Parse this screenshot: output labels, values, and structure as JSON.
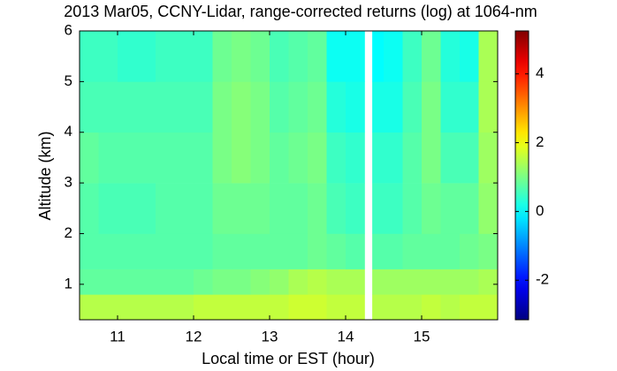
{
  "chart_data": {
    "type": "heatmap",
    "title": "2013 Mar05, CCNY-Lidar, range-corrected returns (log) at 1064-nm",
    "xlabel": "Local time or EST (hour)",
    "ylabel": "Altitude (km)",
    "colormap": "jet",
    "x_edges": [
      10.5,
      10.75,
      11,
      11.25,
      11.5,
      11.75,
      12,
      12.25,
      12.5,
      12.75,
      13,
      13.25,
      13.5,
      13.75,
      14,
      14.25,
      14.35,
      14.5,
      14.75,
      15,
      15.25,
      15.5,
      15.75,
      16.0
    ],
    "y_edges": [
      0.3,
      0.8,
      1.3,
      2,
      3,
      4,
      5,
      6
    ],
    "values": [
      [
        1.5,
        1.5,
        1.5,
        1.5,
        1.5,
        1.5,
        1.6,
        1.6,
        1.6,
        1.6,
        1.6,
        1.7,
        1.7,
        1.6,
        1.6,
        null,
        1.5,
        1.5,
        1.5,
        1.6,
        1.5,
        1.6,
        1.6
      ],
      [
        0.8,
        0.8,
        0.8,
        0.8,
        0.8,
        0.8,
        0.9,
        1.0,
        1.0,
        1.1,
        1.2,
        1.4,
        1.5,
        1.4,
        1.4,
        null,
        1.3,
        1.3,
        1.3,
        1.3,
        1.3,
        1.3,
        1.4
      ],
      [
        0.7,
        0.7,
        0.7,
        0.7,
        0.7,
        0.7,
        0.7,
        0.8,
        0.8,
        0.8,
        0.8,
        0.8,
        0.9,
        0.8,
        0.7,
        null,
        0.7,
        0.7,
        0.8,
        0.8,
        0.8,
        0.9,
        1.0
      ],
      [
        0.7,
        0.6,
        0.6,
        0.6,
        0.7,
        0.7,
        0.7,
        0.9,
        0.9,
        0.9,
        0.8,
        0.8,
        0.9,
        0.6,
        0.5,
        null,
        0.5,
        0.5,
        0.7,
        0.9,
        0.8,
        0.8,
        1.2
      ],
      [
        0.8,
        0.7,
        0.7,
        0.7,
        0.7,
        0.7,
        0.7,
        1.0,
        1.1,
        1.0,
        0.8,
        0.9,
        1.0,
        0.5,
        0.4,
        null,
        0.4,
        0.4,
        0.7,
        1.0,
        0.6,
        0.6,
        1.3
      ],
      [
        0.6,
        0.6,
        0.6,
        0.6,
        0.6,
        0.6,
        0.6,
        1.0,
        1.1,
        1.0,
        0.7,
        0.8,
        0.9,
        0.3,
        0.2,
        null,
        0.2,
        0.2,
        0.6,
        1.0,
        0.4,
        0.4,
        1.4
      ],
      [
        0.5,
        0.5,
        0.4,
        0.4,
        0.5,
        0.5,
        0.5,
        0.9,
        1.0,
        0.9,
        0.6,
        0.7,
        0.8,
        0.1,
        0.1,
        null,
        0.0,
        0.1,
        0.5,
        0.9,
        0.3,
        0.2,
        1.4
      ]
    ],
    "xlim": [
      10.5,
      16.0
    ],
    "xticks": [
      11,
      12,
      13,
      14,
      15
    ],
    "ylim": [
      0.3,
      6
    ],
    "yticks": [
      1,
      2,
      3,
      4,
      5,
      6
    ],
    "clim": [
      -3.15,
      5.25
    ],
    "cticks": [
      -2,
      0,
      2,
      4
    ]
  }
}
